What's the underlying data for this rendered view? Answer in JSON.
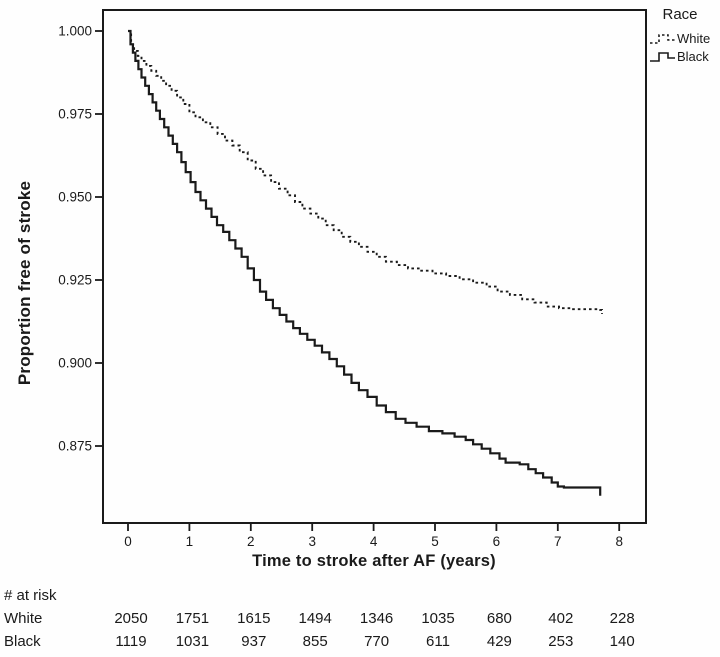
{
  "figure": {
    "background": "#fefefe",
    "ink": "#1a1a1a"
  },
  "legend": {
    "title": "Race",
    "items": [
      {
        "label": "White",
        "style": "dashed"
      },
      {
        "label": "Black",
        "style": "solid"
      }
    ]
  },
  "axes": {
    "x_title": "Time to stroke after AF (years)",
    "y_title": "Proportion free of stroke",
    "x_tick_labels": [
      "0",
      "1",
      "2",
      "3",
      "4",
      "5",
      "6",
      "7",
      "8"
    ],
    "y_tick_labels": [
      "1.000",
      "0.975",
      "0.950",
      "0.925",
      "0.900",
      "0.875"
    ]
  },
  "risk_table": {
    "header": "# at risk",
    "rows": [
      {
        "label": "White",
        "values": [
          "2050",
          "1751",
          "1615",
          "1494",
          "1346",
          "1035",
          "680",
          "402",
          "228"
        ]
      },
      {
        "label": "Black",
        "values": [
          "1119",
          "1031",
          "937",
          "855",
          "770",
          "611",
          "429",
          "253",
          "140"
        ]
      }
    ]
  },
  "chart_data": {
    "type": "line",
    "subtype": "kaplan-meier-step",
    "title": "",
    "xlabel": "Time to stroke after AF (years)",
    "ylabel": "Proportion free of stroke",
    "xlim": [
      -0.4,
      8.45
    ],
    "ylim": [
      0.8535,
      1.0065
    ],
    "x_ticks": [
      0,
      1,
      2,
      3,
      4,
      5,
      6,
      7,
      8
    ],
    "y_ticks": [
      1.0,
      0.975,
      0.95,
      0.925,
      0.9,
      0.875
    ],
    "grid": false,
    "legend_position": "outside-top-right",
    "series": [
      {
        "name": "White",
        "line": "dashed",
        "points": [
          [
            0,
            1.0
          ],
          [
            0.05,
            0.996
          ],
          [
            0.1,
            0.994
          ],
          [
            0.16,
            0.9925
          ],
          [
            0.22,
            0.991
          ],
          [
            0.3,
            0.9895
          ],
          [
            0.38,
            0.988
          ],
          [
            0.46,
            0.9865
          ],
          [
            0.54,
            0.985
          ],
          [
            0.62,
            0.9835
          ],
          [
            0.71,
            0.982
          ],
          [
            0.8,
            0.98
          ],
          [
            0.9,
            0.978
          ],
          [
            1.0,
            0.9755
          ],
          [
            1.1,
            0.974
          ],
          [
            1.22,
            0.9725
          ],
          [
            1.34,
            0.971
          ],
          [
            1.46,
            0.969
          ],
          [
            1.58,
            0.967
          ],
          [
            1.7,
            0.9655
          ],
          [
            1.82,
            0.9635
          ],
          [
            1.95,
            0.961
          ],
          [
            2.08,
            0.9585
          ],
          [
            2.2,
            0.9565
          ],
          [
            2.33,
            0.9545
          ],
          [
            2.46,
            0.9525
          ],
          [
            2.6,
            0.9505
          ],
          [
            2.72,
            0.9485
          ],
          [
            2.84,
            0.9465
          ],
          [
            2.97,
            0.945
          ],
          [
            3.1,
            0.9435
          ],
          [
            3.22,
            0.9415
          ],
          [
            3.35,
            0.94
          ],
          [
            3.48,
            0.938
          ],
          [
            3.62,
            0.9365
          ],
          [
            3.76,
            0.935
          ],
          [
            3.9,
            0.9335
          ],
          [
            4.05,
            0.932
          ],
          [
            4.2,
            0.9305
          ],
          [
            4.38,
            0.9295
          ],
          [
            4.56,
            0.9285
          ],
          [
            4.76,
            0.9278
          ],
          [
            4.96,
            0.927
          ],
          [
            5.18,
            0.9262
          ],
          [
            5.4,
            0.9252
          ],
          [
            5.62,
            0.9242
          ],
          [
            5.84,
            0.923
          ],
          [
            6.02,
            0.9215
          ],
          [
            6.22,
            0.9205
          ],
          [
            6.42,
            0.9192
          ],
          [
            6.62,
            0.9182
          ],
          [
            6.82,
            0.917
          ],
          [
            7.02,
            0.9165
          ],
          [
            7.25,
            0.9162
          ],
          [
            7.69,
            0.916
          ],
          [
            7.72,
            0.9148
          ]
        ]
      },
      {
        "name": "Black",
        "line": "solid",
        "points": [
          [
            0,
            1.0
          ],
          [
            0.04,
            0.996
          ],
          [
            0.08,
            0.9935
          ],
          [
            0.12,
            0.991
          ],
          [
            0.17,
            0.9885
          ],
          [
            0.22,
            0.986
          ],
          [
            0.28,
            0.9835
          ],
          [
            0.34,
            0.981
          ],
          [
            0.4,
            0.9785
          ],
          [
            0.46,
            0.976
          ],
          [
            0.52,
            0.9735
          ],
          [
            0.59,
            0.971
          ],
          [
            0.66,
            0.9685
          ],
          [
            0.73,
            0.966
          ],
          [
            0.8,
            0.9635
          ],
          [
            0.87,
            0.9605
          ],
          [
            0.94,
            0.9575
          ],
          [
            1.02,
            0.9545
          ],
          [
            1.1,
            0.9515
          ],
          [
            1.18,
            0.949
          ],
          [
            1.27,
            0.9465
          ],
          [
            1.36,
            0.944
          ],
          [
            1.45,
            0.9415
          ],
          [
            1.55,
            0.9395
          ],
          [
            1.65,
            0.937
          ],
          [
            1.75,
            0.9345
          ],
          [
            1.85,
            0.932
          ],
          [
            1.95,
            0.9285
          ],
          [
            2.05,
            0.925
          ],
          [
            2.15,
            0.9215
          ],
          [
            2.25,
            0.919
          ],
          [
            2.36,
            0.9165
          ],
          [
            2.47,
            0.9145
          ],
          [
            2.58,
            0.9125
          ],
          [
            2.69,
            0.9105
          ],
          [
            2.8,
            0.9088
          ],
          [
            2.92,
            0.907
          ],
          [
            3.04,
            0.9052
          ],
          [
            3.16,
            0.9032
          ],
          [
            3.28,
            0.9012
          ],
          [
            3.4,
            0.899
          ],
          [
            3.52,
            0.8965
          ],
          [
            3.64,
            0.894
          ],
          [
            3.76,
            0.8918
          ],
          [
            3.9,
            0.8898
          ],
          [
            4.05,
            0.8872
          ],
          [
            4.2,
            0.8852
          ],
          [
            4.36,
            0.8832
          ],
          [
            4.52,
            0.882
          ],
          [
            4.7,
            0.8808
          ],
          [
            4.9,
            0.8795
          ],
          [
            5.12,
            0.8788
          ],
          [
            5.32,
            0.8778
          ],
          [
            5.5,
            0.8768
          ],
          [
            5.62,
            0.8755
          ],
          [
            5.76,
            0.8742
          ],
          [
            5.9,
            0.8728
          ],
          [
            6.05,
            0.8712
          ],
          [
            6.15,
            0.87
          ],
          [
            6.38,
            0.8695
          ],
          [
            6.52,
            0.868
          ],
          [
            6.64,
            0.8668
          ],
          [
            6.76,
            0.8655
          ],
          [
            6.9,
            0.864
          ],
          [
            7.0,
            0.8628
          ],
          [
            7.1,
            0.8625
          ],
          [
            7.69,
            0.8625
          ],
          [
            7.69,
            0.86
          ]
        ]
      }
    ],
    "at_risk": {
      "header": "# at risk",
      "times": [
        0,
        1,
        2,
        3,
        4,
        5,
        6,
        7,
        8
      ],
      "White": [
        2050,
        1751,
        1615,
        1494,
        1346,
        1035,
        680,
        402,
        228
      ],
      "Black": [
        1119,
        1031,
        937,
        855,
        770,
        611,
        429,
        253,
        140
      ]
    }
  }
}
